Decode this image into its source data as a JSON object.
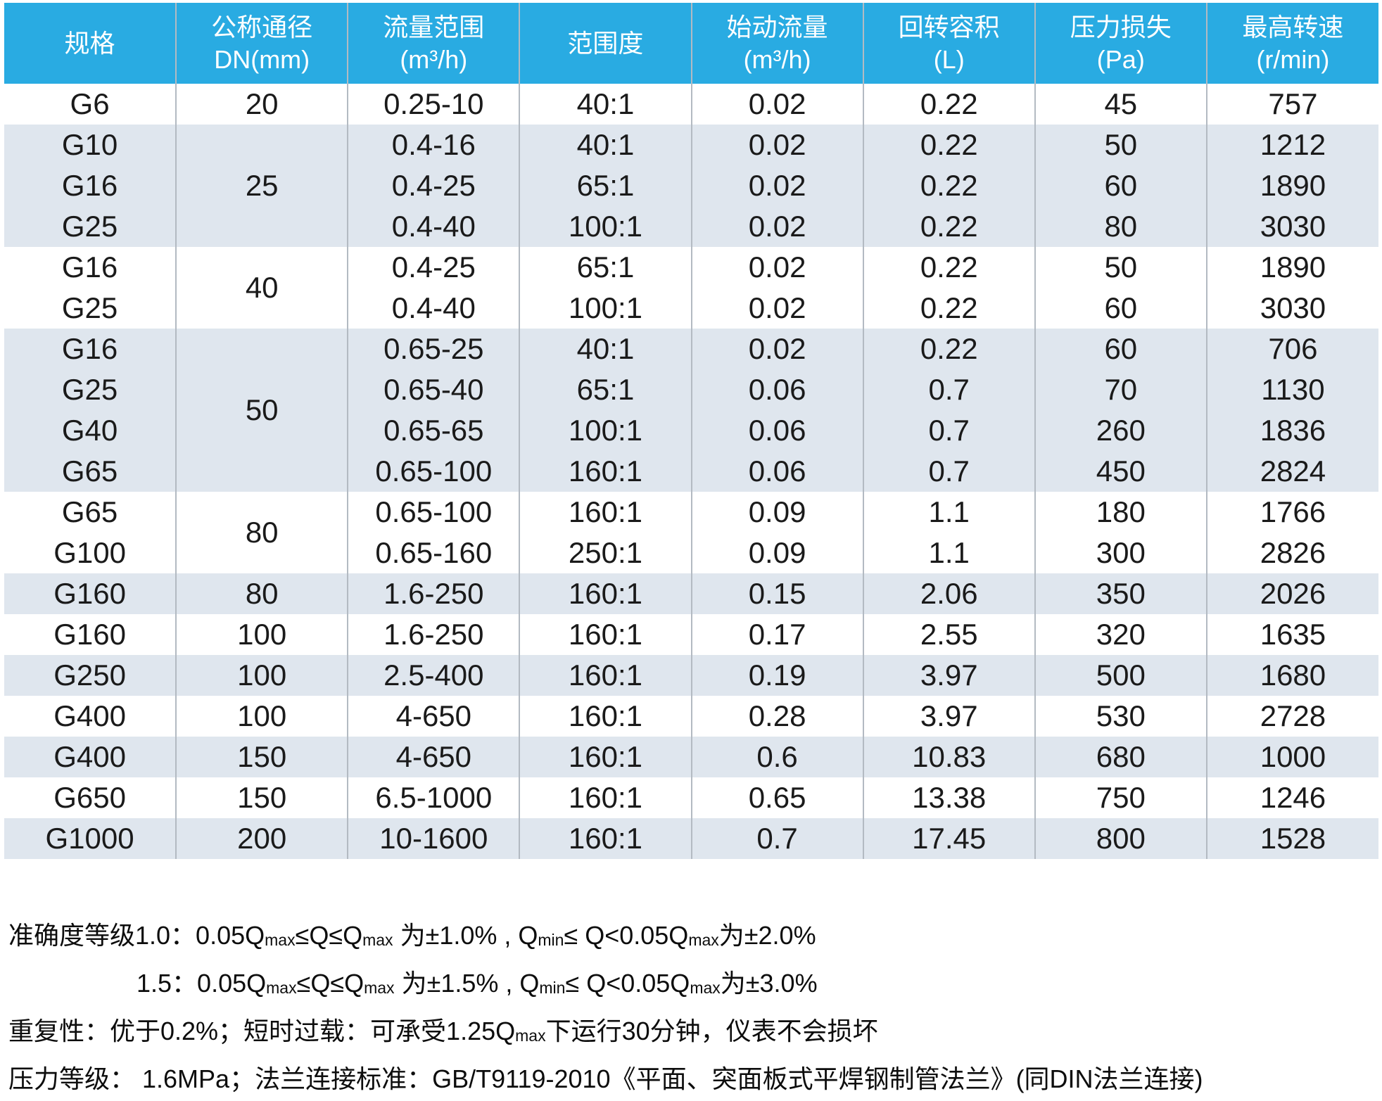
{
  "colors": {
    "header_bg": "#29abe2",
    "band_bg": "#dfe6ee",
    "sep": "#b3bac2",
    "table_text": "#1a1a1a",
    "note_text": "#0d0d0d"
  },
  "table": {
    "columns": [
      {
        "key": "spec",
        "lines": [
          "规格"
        ]
      },
      {
        "key": "dn",
        "lines": [
          "公称通径",
          "DN(mm)"
        ]
      },
      {
        "key": "flow_range",
        "lines": [
          "流量范围",
          "(m³/h)"
        ]
      },
      {
        "key": "rangeability",
        "lines": [
          "范围度"
        ]
      },
      {
        "key": "start_flow",
        "lines": [
          "始动流量",
          "(m³/h)"
        ]
      },
      {
        "key": "rotary_volume",
        "lines": [
          "回转容积",
          "(L)"
        ]
      },
      {
        "key": "pressure_loss",
        "lines": [
          "压力损失",
          "(Pa)"
        ]
      },
      {
        "key": "max_speed",
        "lines": [
          "最高转速",
          "(r/min)"
        ]
      }
    ],
    "groups": [
      {
        "dn": "20",
        "rows": [
          {
            "spec": "G6",
            "flow_range": "0.25-10",
            "rangeability": "40:1",
            "start_flow": "0.02",
            "rotary_volume": "0.22",
            "pressure_loss": "45",
            "max_speed": "757"
          }
        ]
      },
      {
        "dn": "25",
        "rows": [
          {
            "spec": "G10",
            "flow_range": "0.4-16",
            "rangeability": "40:1",
            "start_flow": "0.02",
            "rotary_volume": "0.22",
            "pressure_loss": "50",
            "max_speed": "1212"
          },
          {
            "spec": "G16",
            "flow_range": "0.4-25",
            "rangeability": "65:1",
            "start_flow": "0.02",
            "rotary_volume": "0.22",
            "pressure_loss": "60",
            "max_speed": "1890"
          },
          {
            "spec": "G25",
            "flow_range": "0.4-40",
            "rangeability": "100:1",
            "start_flow": "0.02",
            "rotary_volume": "0.22",
            "pressure_loss": "80",
            "max_speed": "3030"
          }
        ]
      },
      {
        "dn": "40",
        "rows": [
          {
            "spec": "G16",
            "flow_range": "0.4-25",
            "rangeability": "65:1",
            "start_flow": "0.02",
            "rotary_volume": "0.22",
            "pressure_loss": "50",
            "max_speed": "1890"
          },
          {
            "spec": "G25",
            "flow_range": "0.4-40",
            "rangeability": "100:1",
            "start_flow": "0.02",
            "rotary_volume": "0.22",
            "pressure_loss": "60",
            "max_speed": "3030"
          }
        ]
      },
      {
        "dn": "50",
        "rows": [
          {
            "spec": "G16",
            "flow_range": "0.65-25",
            "rangeability": "40:1",
            "start_flow": "0.02",
            "rotary_volume": "0.22",
            "pressure_loss": "60",
            "max_speed": "706"
          },
          {
            "spec": "G25",
            "flow_range": "0.65-40",
            "rangeability": "65:1",
            "start_flow": "0.06",
            "rotary_volume": "0.7",
            "pressure_loss": "70",
            "max_speed": "1130"
          },
          {
            "spec": "G40",
            "flow_range": "0.65-65",
            "rangeability": "100:1",
            "start_flow": "0.06",
            "rotary_volume": "0.7",
            "pressure_loss": "260",
            "max_speed": "1836"
          },
          {
            "spec": "G65",
            "flow_range": "0.65-100",
            "rangeability": "160:1",
            "start_flow": "0.06",
            "rotary_volume": "0.7",
            "pressure_loss": "450",
            "max_speed": "2824"
          }
        ]
      },
      {
        "dn": "80",
        "rows": [
          {
            "spec": "G65",
            "flow_range": "0.65-100",
            "rangeability": "160:1",
            "start_flow": "0.09",
            "rotary_volume": "1.1",
            "pressure_loss": "180",
            "max_speed": "1766"
          },
          {
            "spec": "G100",
            "flow_range": "0.65-160",
            "rangeability": "250:1",
            "start_flow": "0.09",
            "rotary_volume": "1.1",
            "pressure_loss": "300",
            "max_speed": "2826"
          }
        ]
      },
      {
        "dn": "80",
        "rows": [
          {
            "spec": "G160",
            "flow_range": "1.6-250",
            "rangeability": "160:1",
            "start_flow": "0.15",
            "rotary_volume": "2.06",
            "pressure_loss": "350",
            "max_speed": "2026"
          }
        ]
      },
      {
        "dn": "100",
        "rows": [
          {
            "spec": "G160",
            "flow_range": "1.6-250",
            "rangeability": "160:1",
            "start_flow": "0.17",
            "rotary_volume": "2.55",
            "pressure_loss": "320",
            "max_speed": "1635"
          }
        ]
      },
      {
        "dn": "100",
        "rows": [
          {
            "spec": "G250",
            "flow_range": "2.5-400",
            "rangeability": "160:1",
            "start_flow": "0.19",
            "rotary_volume": "3.97",
            "pressure_loss": "500",
            "max_speed": "1680"
          }
        ]
      },
      {
        "dn": "100",
        "rows": [
          {
            "spec": "G400",
            "flow_range": "4-650",
            "rangeability": "160:1",
            "start_flow": "0.28",
            "rotary_volume": "3.97",
            "pressure_loss": "530",
            "max_speed": "2728"
          }
        ]
      },
      {
        "dn": "150",
        "rows": [
          {
            "spec": "G400",
            "flow_range": "4-650",
            "rangeability": "160:1",
            "start_flow": "0.6",
            "rotary_volume": "10.83",
            "pressure_loss": "680",
            "max_speed": "1000"
          }
        ]
      },
      {
        "dn": "150",
        "rows": [
          {
            "spec": "G650",
            "flow_range": "6.5-1000",
            "rangeability": "160:1",
            "start_flow": "0.65",
            "rotary_volume": "13.38",
            "pressure_loss": "750",
            "max_speed": "1246"
          }
        ]
      },
      {
        "dn": "200",
        "rows": [
          {
            "spec": "G1000",
            "flow_range": "10-1600",
            "rangeability": "160:1",
            "start_flow": "0.7",
            "rotary_volume": "17.45",
            "pressure_loss": "800",
            "max_speed": "1528"
          }
        ]
      }
    ]
  },
  "notes": [
    {
      "indent": false,
      "segments": [
        {
          "t": "准确度等级1.0："
        },
        {
          "t": "0.05Q"
        },
        {
          "t": "max",
          "sub": true
        },
        {
          "t": "≤Q≤Q"
        },
        {
          "t": "max",
          "sub": true
        },
        {
          "t": " 为±1.0% , Q"
        },
        {
          "t": "min",
          "sub": true
        },
        {
          "t": "≤ Q<0.05Q"
        },
        {
          "t": "max",
          "sub": true
        },
        {
          "t": "为±2.0%"
        }
      ]
    },
    {
      "indent": true,
      "segments": [
        {
          "t": "1.5："
        },
        {
          "t": "0.05Q"
        },
        {
          "t": "max",
          "sub": true
        },
        {
          "t": "≤Q≤Q"
        },
        {
          "t": "max",
          "sub": true
        },
        {
          "t": " 为±1.5% , Q"
        },
        {
          "t": "min",
          "sub": true
        },
        {
          "t": "≤ Q<0.05Q"
        },
        {
          "t": "max",
          "sub": true
        },
        {
          "t": "为±3.0%"
        }
      ]
    },
    {
      "indent": false,
      "segments": [
        {
          "t": "重复性：优于0.2%；短时过载：可承受1.25Q"
        },
        {
          "t": "max",
          "sub": true
        },
        {
          "t": "下运行30分钟，仪表不会损坏"
        }
      ]
    },
    {
      "indent": false,
      "segments": [
        {
          "t": "压力等级： 1.6MPa；法兰连接标准：GB/T9119-2010《平面、突面板式平焊钢制管法兰》(同DIN法兰连接)"
        }
      ]
    }
  ]
}
